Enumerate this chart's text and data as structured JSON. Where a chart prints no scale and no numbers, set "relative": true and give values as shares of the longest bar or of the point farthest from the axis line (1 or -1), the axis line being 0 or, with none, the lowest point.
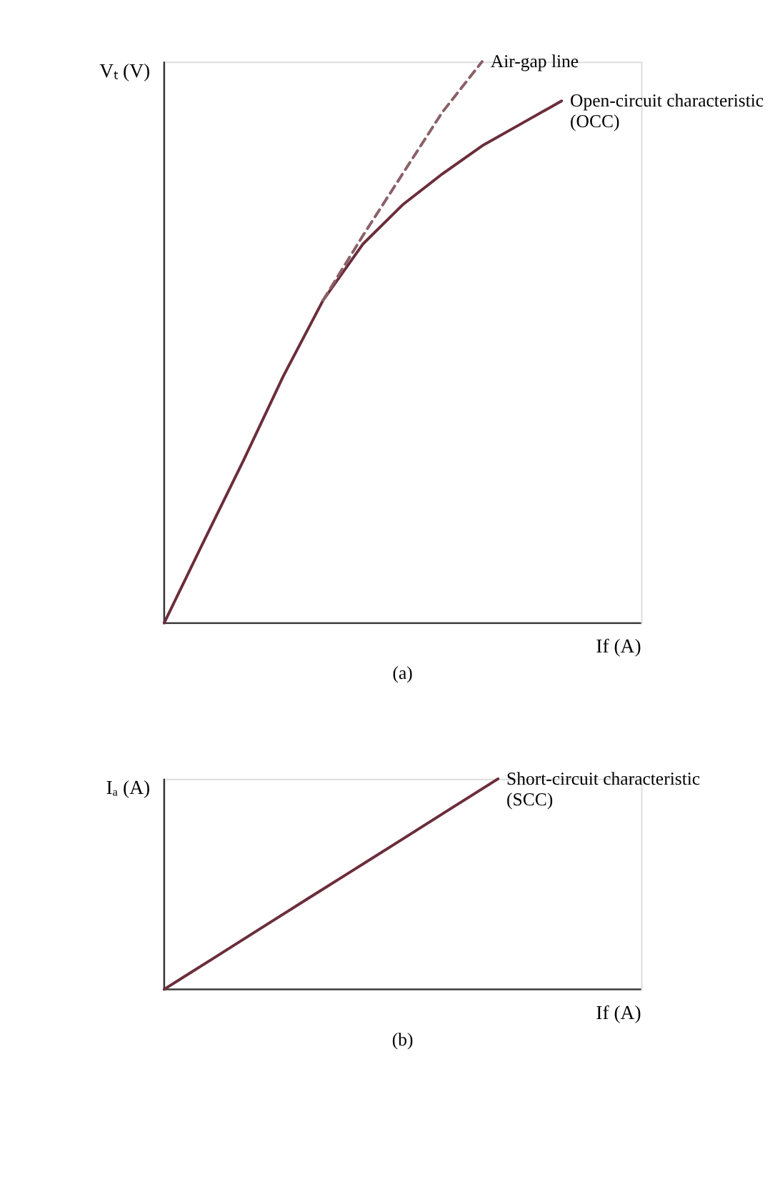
{
  "chart_data": [
    {
      "type": "line",
      "relative": true,
      "xlabel": "If (A)",
      "ylabel": "Vₜ (V)",
      "categories": [
        null,
        null,
        null,
        null,
        null,
        null,
        null,
        null,
        null,
        null,
        null,
        null,
        null
      ],
      "series": [
        {
          "color": "#6b2d3a",
          "line_style": "solid",
          "values": [
            0,
            0.146,
            0.29,
            0.44,
            0.575,
            0.675,
            0.745,
            0.8,
            0.85,
            0.89,
            0.93,
            null,
            null
          ]
        },
        {
          "color": "#8a6068",
          "line_style": "dashed",
          "values": [
            null,
            null,
            null,
            null,
            0.575,
            0.69,
            0.8,
            0.91,
            1.0,
            null,
            null,
            null,
            null
          ]
        }
      ],
      "annotations": [
        "Open-circuit characteristic\n(OCC)",
        "Air-gap line",
        "(a)"
      ]
    },
    {
      "type": "line",
      "relative": true,
      "xlabel": "If (A)",
      "ylabel": "Iₐ (A)",
      "categories": [
        null,
        null,
        null,
        null,
        null,
        null,
        null,
        null,
        null,
        null,
        null
      ],
      "series": [
        {
          "color": "#6b2d3a",
          "line_style": "solid",
          "values": [
            0,
            0.143,
            0.286,
            0.429,
            0.571,
            0.714,
            0.857,
            1.0,
            null,
            null,
            null
          ]
        }
      ],
      "annotations": [
        "Short-circuit characteristic\n(SCC)",
        "(b)"
      ]
    }
  ]
}
